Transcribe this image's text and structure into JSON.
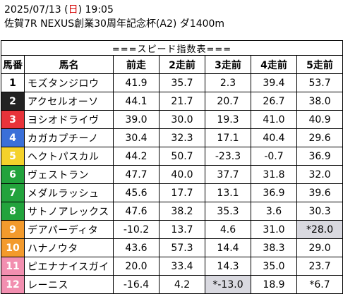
{
  "header": {
    "date_prefix": "2025/07/13 (",
    "day": "日",
    "date_suffix": ") 19:05",
    "race": "佐賀7R NEXUS創業30周年記念杯(A2) ダ1400m"
  },
  "table": {
    "title": "===スピード指数表===",
    "columns": [
      "馬番",
      "馬名",
      "前走",
      "2走前",
      "3走前",
      "4走前",
      "5走前"
    ],
    "rows": [
      {
        "num": "1",
        "name": "モズタンジロウ",
        "bg": "#ffffff",
        "fg": "#000000",
        "vals": [
          "41.9",
          "35.7",
          "2.3",
          "39.4",
          "53.7"
        ],
        "shade": [
          false,
          false,
          false,
          false,
          false
        ]
      },
      {
        "num": "2",
        "name": "アクセルオーソ",
        "bg": "#222222",
        "fg": "#ffffff",
        "vals": [
          "44.1",
          "21.7",
          "20.7",
          "26.7",
          "38.0"
        ],
        "shade": [
          false,
          false,
          false,
          false,
          false
        ]
      },
      {
        "num": "3",
        "name": "ヨシオドライヴ",
        "bg": "#e8333a",
        "fg": "#ffffff",
        "vals": [
          "39.0",
          "30.0",
          "19.3",
          "41.0",
          "40.9"
        ],
        "shade": [
          false,
          false,
          false,
          false,
          false
        ]
      },
      {
        "num": "4",
        "name": "カガカプチーノ",
        "bg": "#3a6fd8",
        "fg": "#ffffff",
        "vals": [
          "30.4",
          "32.3",
          "17.1",
          "40.4",
          "29.6"
        ],
        "shade": [
          false,
          false,
          false,
          false,
          false
        ]
      },
      {
        "num": "5",
        "name": "ヘクトパスカル",
        "bg": "#f4d22b",
        "fg": "#ffffff",
        "vals": [
          "44.2",
          "50.7",
          "-23.3",
          "-0.7",
          "36.9"
        ],
        "shade": [
          false,
          false,
          false,
          false,
          false
        ]
      },
      {
        "num": "6",
        "name": "ヴェストラン",
        "bg": "#22a33c",
        "fg": "#ffffff",
        "vals": [
          "47.7",
          "40.0",
          "37.7",
          "31.8",
          "32.0"
        ],
        "shade": [
          false,
          false,
          false,
          false,
          false
        ]
      },
      {
        "num": "7",
        "name": "メダルラッシュ",
        "bg": "#22a33c",
        "fg": "#ffffff",
        "vals": [
          "45.6",
          "17.7",
          "13.1",
          "36.9",
          "39.6"
        ],
        "shade": [
          false,
          false,
          false,
          false,
          false
        ]
      },
      {
        "num": "8",
        "name": "サトノアレックス",
        "bg": "#22a33c",
        "fg": "#ffffff",
        "vals": [
          "47.6",
          "38.2",
          "35.3",
          "3.6",
          "30.3"
        ],
        "shade": [
          false,
          false,
          false,
          false,
          false
        ]
      },
      {
        "num": "9",
        "name": "デアパーディタ",
        "bg": "#f39a2c",
        "fg": "#ffffff",
        "vals": [
          "-10.2",
          "13.7",
          "4.6",
          "31.0",
          "*28.0"
        ],
        "shade": [
          false,
          false,
          false,
          false,
          true
        ]
      },
      {
        "num": "10",
        "name": "ハナノウタ",
        "bg": "#f39a2c",
        "fg": "#ffffff",
        "vals": [
          "43.6",
          "57.3",
          "14.4",
          "38.3",
          "29.0"
        ],
        "shade": [
          false,
          false,
          false,
          false,
          false
        ]
      },
      {
        "num": "11",
        "name": "ピエナナイスガイ",
        "bg": "#f28fb0",
        "fg": "#ffffff",
        "vals": [
          "20.0",
          "33.4",
          "14.3",
          "35.0",
          "23.7"
        ],
        "shade": [
          false,
          false,
          false,
          false,
          false
        ]
      },
      {
        "num": "12",
        "name": "レーニス",
        "bg": "#f28fb0",
        "fg": "#ffffff",
        "vals": [
          "-16.4",
          "4.2",
          "*-13.0",
          "18.9",
          "*6.7"
        ],
        "shade": [
          false,
          false,
          true,
          false,
          false
        ]
      }
    ]
  }
}
